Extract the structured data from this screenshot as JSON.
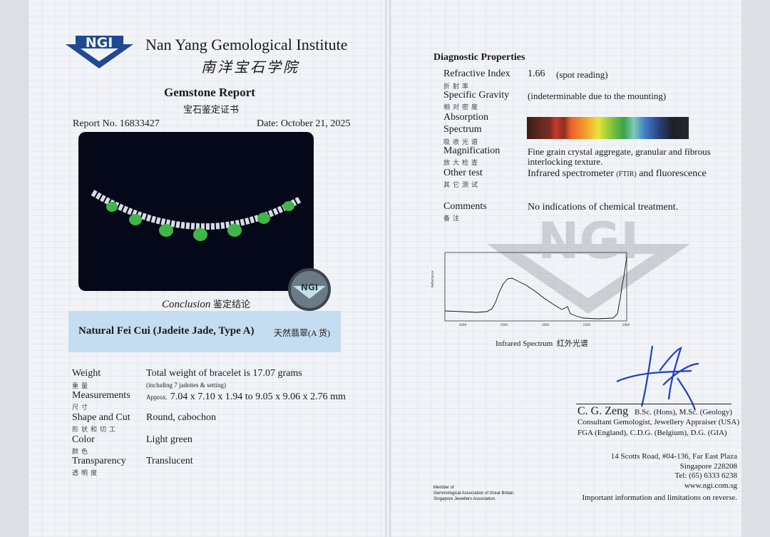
{
  "header": {
    "logo_text": "NGI",
    "institute_name": "Nan Yang Gemological Institute",
    "institute_name_cn": "南洋宝石学院",
    "report_title": "Gemstone Report",
    "report_title_cn": "宝石鉴定证书",
    "report_no": "Report No. 16833427",
    "date": "Date: October 21, 2025"
  },
  "photo": {
    "subject": "jadeite bracelet",
    "stone_count": 7,
    "stone_color": "#3fb54a",
    "background": "#050818"
  },
  "hologram": {
    "text": "NGI"
  },
  "conclusion": {
    "label": "Conclusion",
    "label_cn": "鉴定结论",
    "result": "Natural Fei Cui (Jadeite Jade, Type A)",
    "result_cn": "天然翡翠(A 货)",
    "band_color": "#bfdaf0"
  },
  "properties": [
    {
      "label": "Weight",
      "label_cn": "重量",
      "value": "Total weight of bracelet is 17.07 grams",
      "note": "(including 7 jadeites & setting)"
    },
    {
      "label": "Measurements",
      "label_cn": "尺寸",
      "prefix": "Approx.",
      "value": "7.04 x 7.10 x 1.94 to 9.05 x 9.06 x 2.76 mm"
    },
    {
      "label": "Shape and Cut",
      "label_cn": "形状和切工",
      "value": "Round, cabochon"
    },
    {
      "label": "Color",
      "label_cn": "颜色",
      "value": "Light green"
    },
    {
      "label": "Transparency",
      "label_cn": "透明度",
      "value": "Translucent"
    }
  ],
  "diagnostic": {
    "title": "Diagnostic Properties",
    "items": [
      {
        "label": "Refractive Index",
        "label_cn": "折射率",
        "value": "1.66",
        "note": "(spot reading)"
      },
      {
        "label": "Specific Gravity",
        "label_cn": "相对密度",
        "value": "(indeterminable due to the mounting)"
      },
      {
        "label": "Absorption",
        "label2": "Spectrum",
        "label_cn": "吸收光谱"
      },
      {
        "label": "Magnification",
        "label_cn": "放大检查",
        "value": "Fine grain crystal aggregate, granular and fibrous",
        "value2": "interlocking texture."
      },
      {
        "label": "Other test",
        "label_cn": "其它测试",
        "value": "Infrared spectrometer",
        "value_small": "(FTIR)",
        "value_end": "and fluorescence"
      },
      {
        "label": "Comments",
        "label_cn": "备注",
        "value": "No indications of chemical treatment."
      }
    ]
  },
  "ir_spectrum": {
    "caption": "Infrared Spectrum",
    "caption_cn": "红外光谱",
    "x_ticks": [
      "4000",
      "3500",
      "3000",
      "2500",
      "2000"
    ]
  },
  "signatory": {
    "name": "C. G. Zeng",
    "degrees": "B.Sc. (Hons), M.Sc. (Geology)",
    "line2": "Consultant Gemologist, Jewellery Appraiser (USA)",
    "line3": "FGA (England), C.D.G. (Belgium), D.G. (GIA)"
  },
  "address": {
    "street": "14 Scotts Road, #04-136, Far East Plaza",
    "city": "Singapore 228208",
    "tel": "Tel: (65) 6333 6238",
    "web": "www.ngi.com.sg"
  },
  "membership": [
    "Member of",
    "Gemmological Association of Great Britain.",
    "Singapore Jewellers Association."
  ],
  "footer_note": "Important information and limitations on reverse."
}
